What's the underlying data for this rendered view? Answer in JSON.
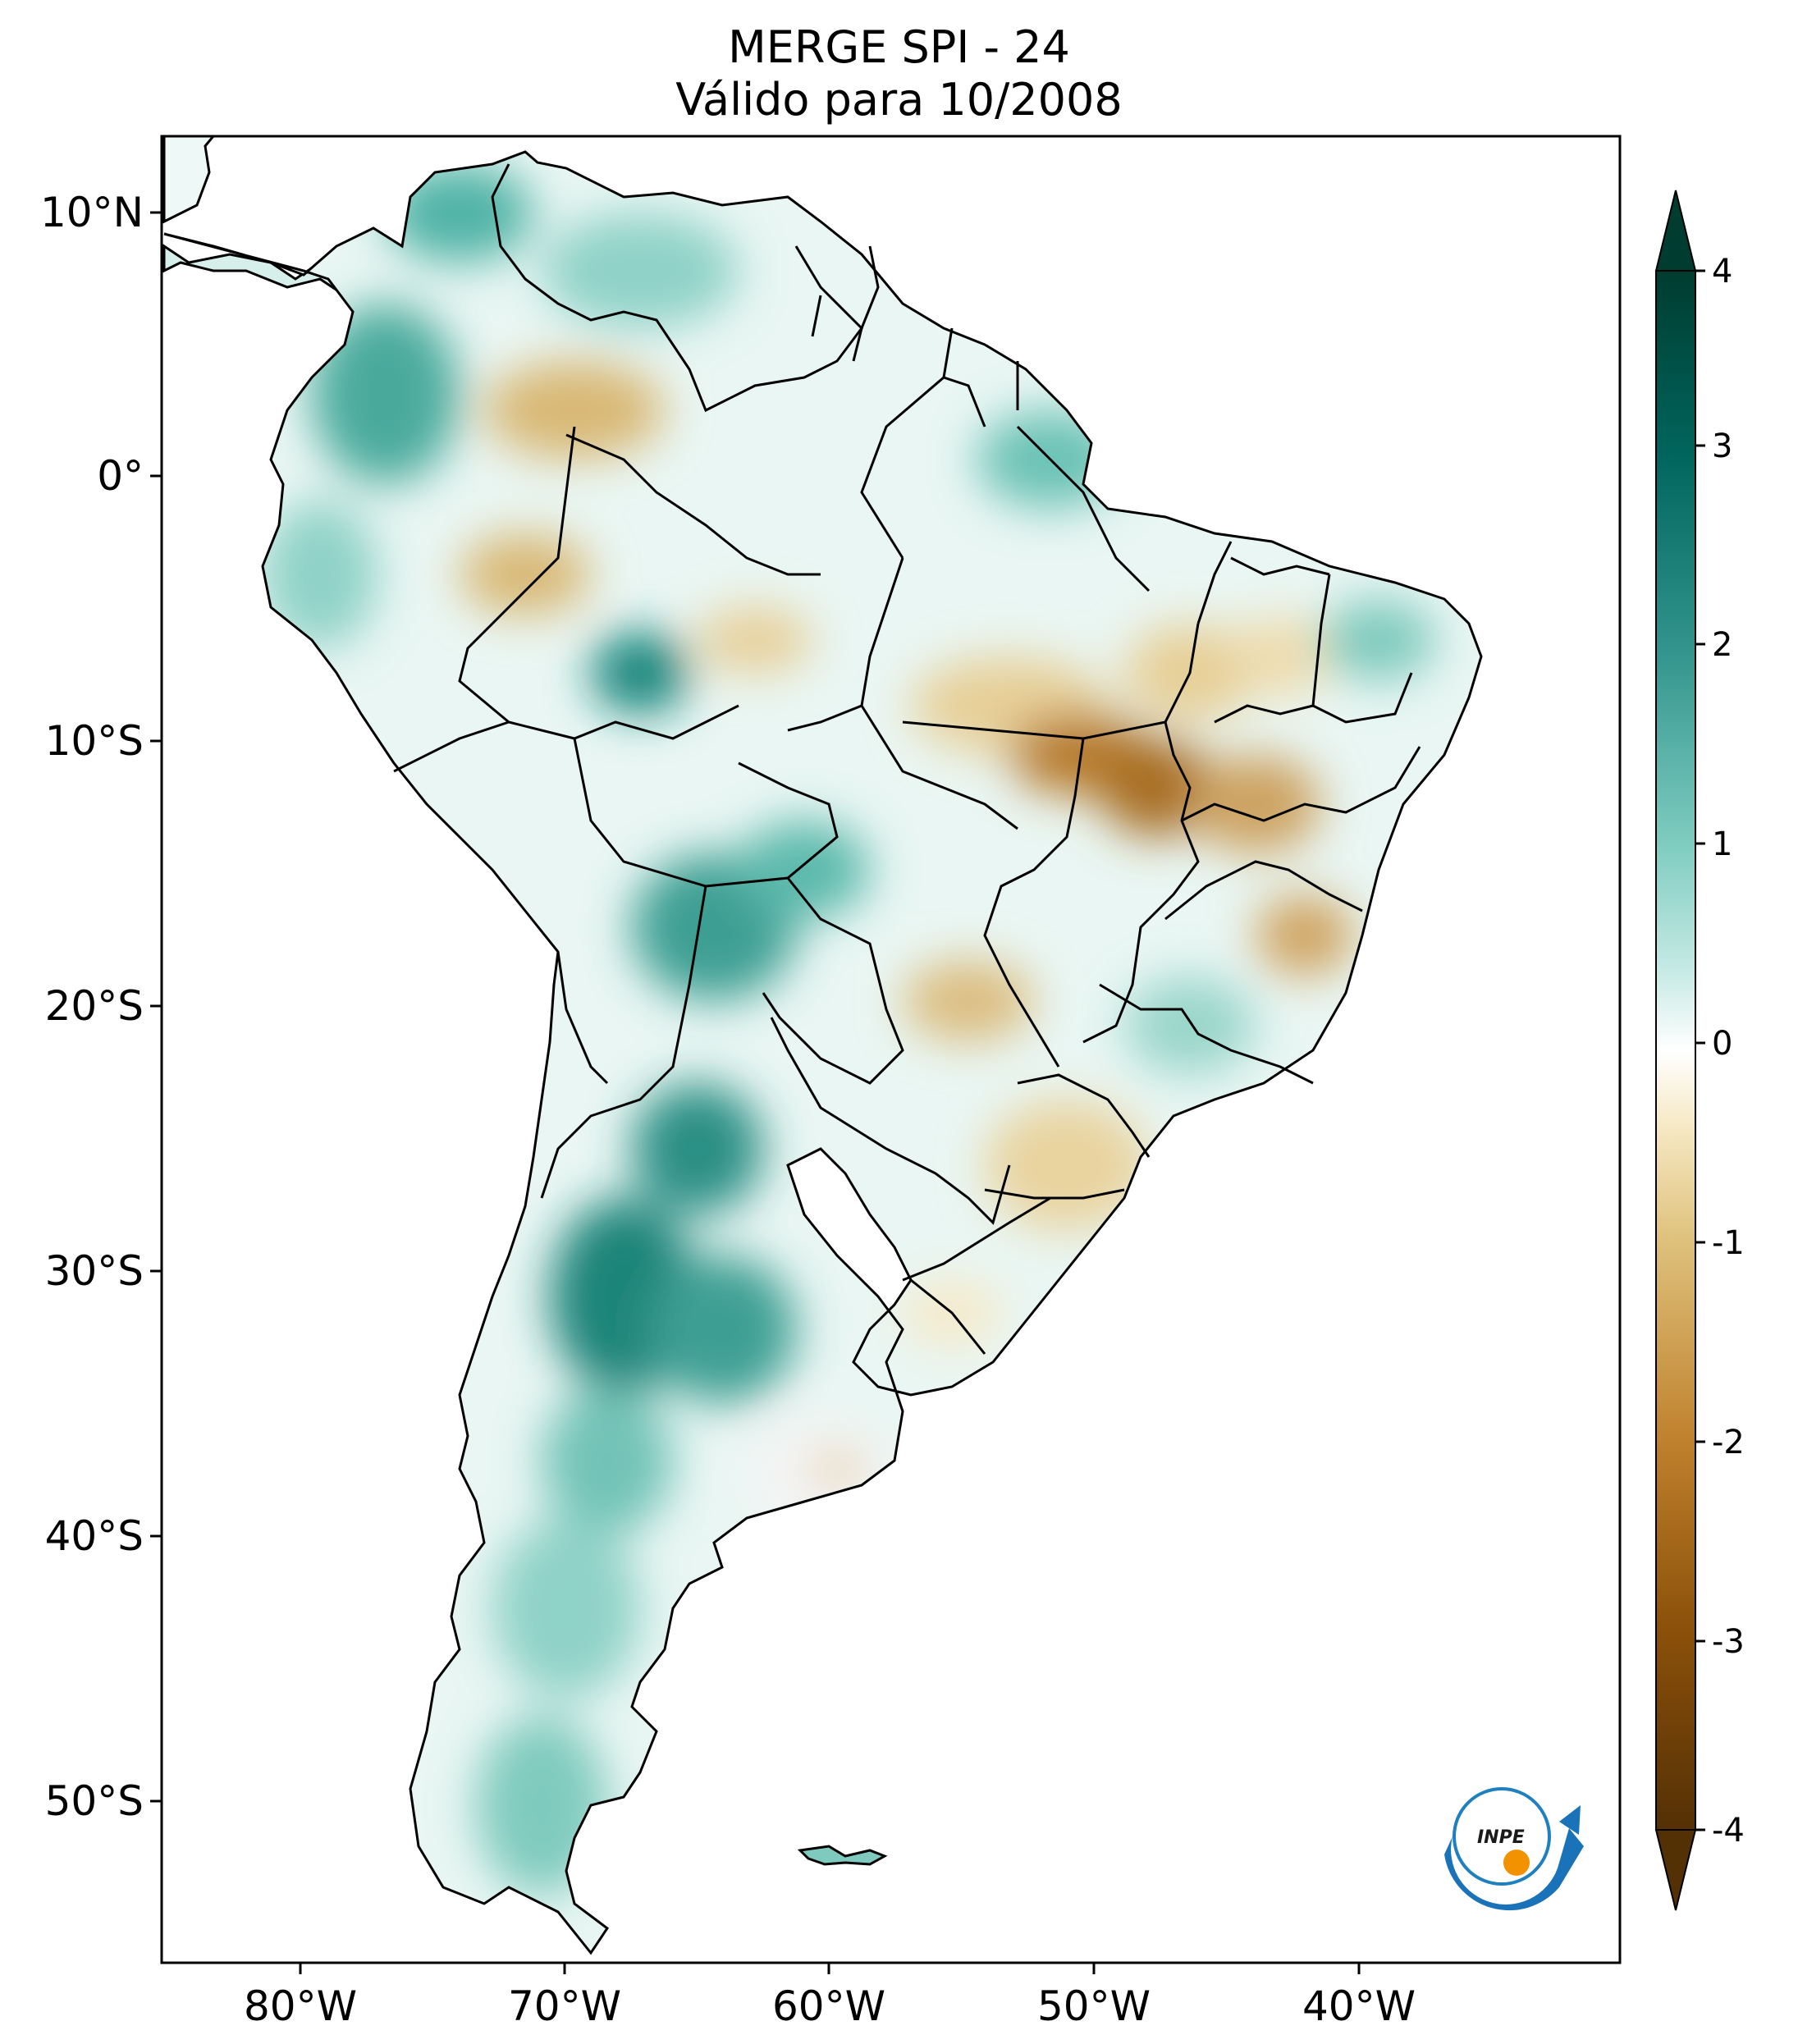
{
  "title_line1": "MERGE   SPI - 24",
  "title_line2": "Válido para 10/2008",
  "lat_ticks": [
    "10°N",
    "0°",
    "10°S",
    "20°S",
    "30°S",
    "40°S",
    "50°S"
  ],
  "lon_ticks": [
    "80°W",
    "70°W",
    "60°W",
    "50°W",
    "40°W"
  ],
  "colorbar": {
    "ticks": [
      "4",
      "3",
      "2",
      "1",
      "0",
      "-1",
      "-2",
      "-3",
      "-4"
    ],
    "min": -4,
    "max": 4,
    "extend": "both",
    "colormap": "BrBG",
    "colors": {
      "dry_max": "#543005",
      "dry": "#bf812d",
      "neutral": "#ffffff",
      "wet": "#35978f",
      "wet_max": "#003c30"
    }
  },
  "logo_text": "INPE"
}
